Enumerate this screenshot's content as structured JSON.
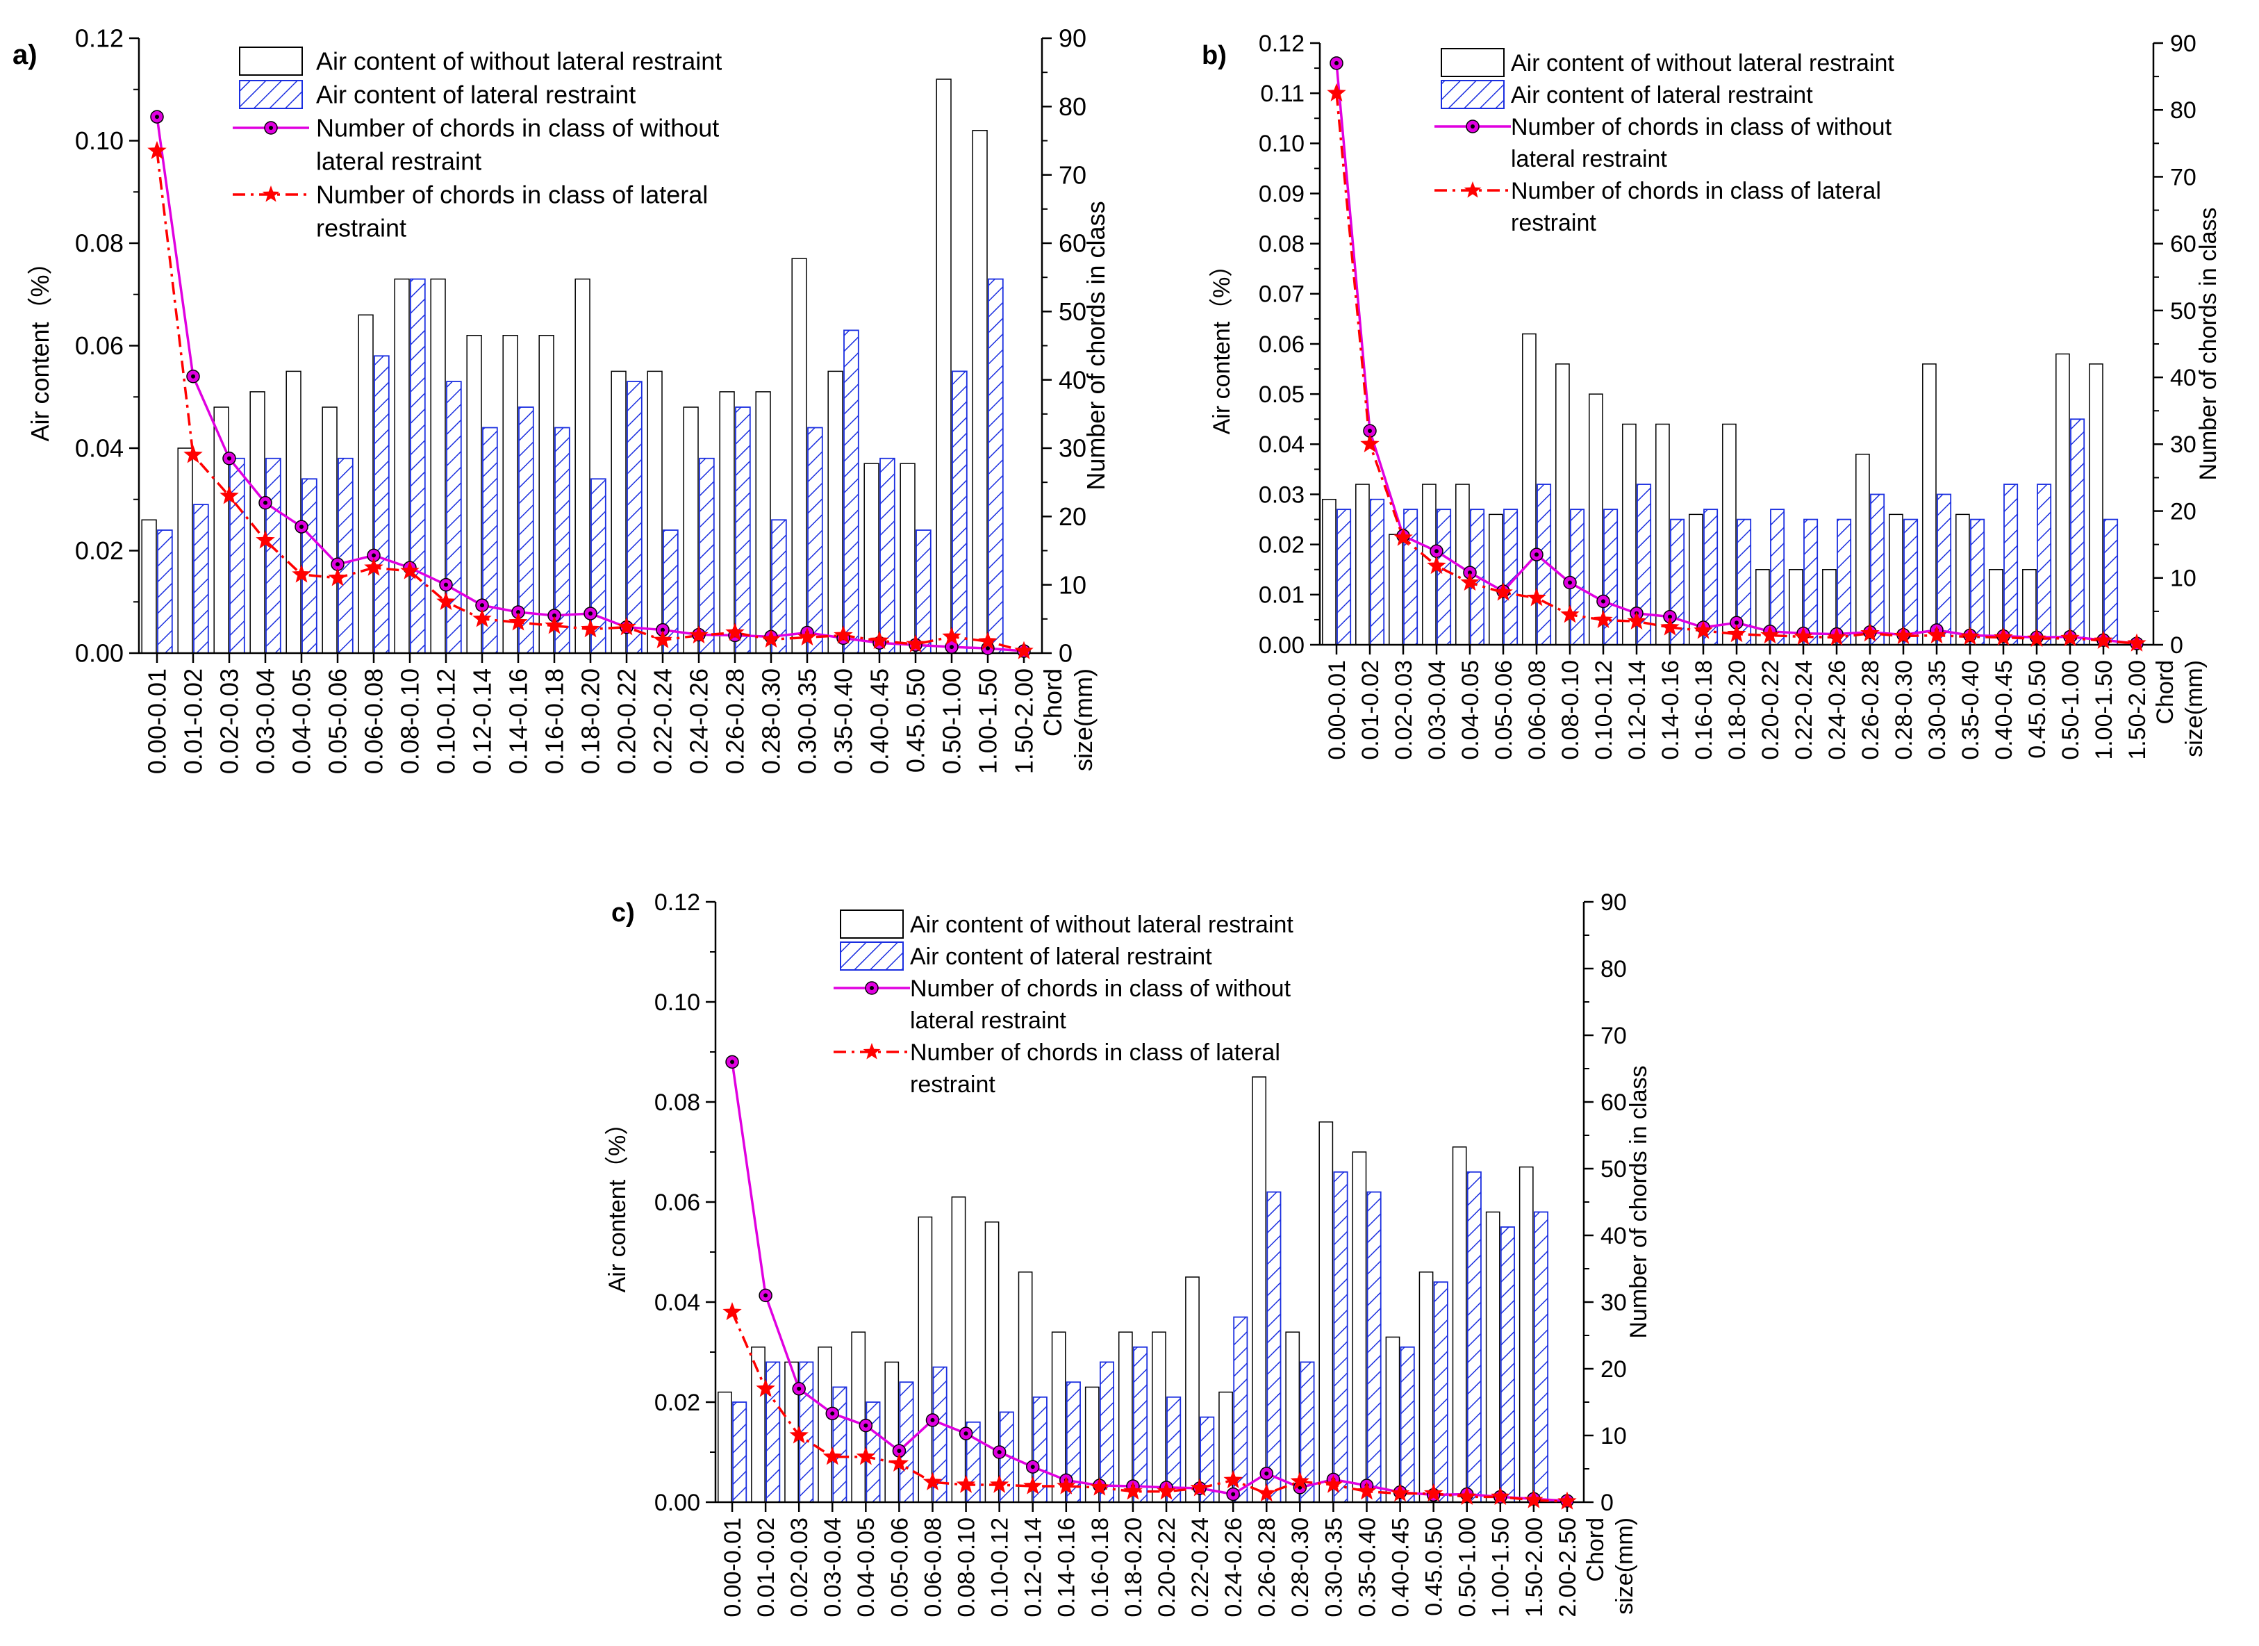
{
  "chart_data": [
    {
      "panel": "a)",
      "type": "bar",
      "ylabel": "Air content（%）",
      "y2label": "Number of chords in class",
      "xlabel": [
        "Chord",
        "size(mm)"
      ],
      "ylim": [
        0,
        0.12
      ],
      "yticks": [
        "0.00",
        "0.02",
        "0.04",
        "0.06",
        "0.08",
        "0.10",
        "0.12"
      ],
      "y2lim": [
        0,
        90
      ],
      "y2ticks": [
        "0",
        "10",
        "20",
        "30",
        "40",
        "50",
        "60",
        "70",
        "80",
        "90"
      ],
      "categories": [
        "0.00-0.01",
        "0.01-0.02",
        "0.02-0.03",
        "0.03-0.04",
        "0.04-0.05",
        "0.05-0.06",
        "0.06-0.08",
        "0.08-0.10",
        "0.10-0.12",
        "0.12-0.14",
        "0.14-0.16",
        "0.16-0.18",
        "0.18-0.20",
        "0.20-0.22",
        "0.22-0.24",
        "0.24-0.26",
        "0.26-0.28",
        "0.28-0.30",
        "0.30-0.35",
        "0.35-0.40",
        "0.40-0.45",
        "0.45.0.50",
        "0.50-1.00",
        "1.00-1.50",
        "1.50-2.00"
      ],
      "legend": [
        {
          "kind": "bar-open",
          "lines": [
            "Air content of without lateral restraint"
          ]
        },
        {
          "kind": "bar-hatch",
          "lines": [
            "Air content of  lateral restraint"
          ]
        },
        {
          "kind": "line-circle",
          "lines": [
            "Number of chords in class of  without",
            "lateral restraint"
          ]
        },
        {
          "kind": "line-star",
          "lines": [
            "Number of chords in class of  lateral",
            "restraint"
          ]
        }
      ],
      "series": [
        {
          "name": "Air content of without lateral restraint",
          "axis": "left",
          "values": [
            0.026,
            0.04,
            0.048,
            0.051,
            0.055,
            0.048,
            0.066,
            0.073,
            0.073,
            0.062,
            0.062,
            0.062,
            0.073,
            0.055,
            0.055,
            0.048,
            0.051,
            0.051,
            0.077,
            0.055,
            0.037,
            0.037,
            0.112,
            0.102,
            null
          ]
        },
        {
          "name": "Air content of  lateral restraint",
          "axis": "left",
          "values": [
            0.024,
            0.029,
            0.038,
            0.038,
            0.034,
            0.038,
            0.058,
            0.073,
            0.053,
            0.044,
            0.048,
            0.044,
            0.034,
            0.053,
            0.024,
            0.038,
            0.048,
            0.026,
            0.044,
            0.063,
            0.038,
            0.024,
            0.055,
            0.073,
            null
          ]
        },
        {
          "name": "Number of chords in class of  without lateral restraint",
          "axis": "right",
          "values": [
            78.5,
            40.5,
            28.5,
            22,
            18.5,
            13,
            14.3,
            12.5,
            10,
            7,
            6,
            5.5,
            5.8,
            3.8,
            3.4,
            2.7,
            2.6,
            2.4,
            3,
            2.2,
            1.5,
            1.2,
            0.9,
            0.7,
            0.3
          ]
        },
        {
          "name": "Number of chords in class of  lateral restraint",
          "axis": "right",
          "values": [
            73.5,
            29,
            23,
            16.5,
            11.5,
            11,
            12.5,
            12,
            7.5,
            5,
            4.5,
            4,
            3.5,
            3.8,
            1.9,
            2.6,
            3,
            2,
            2.3,
            2.6,
            1.8,
            1.3,
            2.4,
            1.7,
            0.3
          ]
        }
      ]
    },
    {
      "panel": "b)",
      "type": "bar",
      "ylabel": "Air content（%）",
      "y2label": "Number of chords in class",
      "xlabel": [
        "Chord",
        "size(mm)"
      ],
      "ylim": [
        0,
        0.12
      ],
      "yticks": [
        "0.00",
        "0.01",
        "0.02",
        "0.03",
        "0.04",
        "0.05",
        "0.06",
        "0.07",
        "0.08",
        "0.09",
        "0.10",
        "0.11",
        "0.12"
      ],
      "y2lim": [
        0,
        90
      ],
      "y2ticks": [
        "0",
        "10",
        "20",
        "30",
        "40",
        "50",
        "60",
        "70",
        "80",
        "90"
      ],
      "categories": [
        "0.00-0.01",
        "0.01-0.02",
        "0.02-0.03",
        "0.03-0.04",
        "0.04-0.05",
        "0.05-0.06",
        "0.06-0.08",
        "0.08-0.10",
        "0.10-0.12",
        "0.12-0.14",
        "0.14-0.16",
        "0.16-0.18",
        "0.18-0.20",
        "0.20-0.22",
        "0.22-0.24",
        "0.24-0.26",
        "0.26-0.28",
        "0.28-0.30",
        "0.30-0.35",
        "0.35-0.40",
        "0.40-0.45",
        "0.45.0.50",
        "0.50-1.00",
        "1.00-1.50",
        "1.50-2.00"
      ],
      "legend": [
        {
          "kind": "bar-open",
          "lines": [
            "Air content of  without lateral restraint"
          ]
        },
        {
          "kind": "bar-hatch",
          "lines": [
            "Air content of  lateral restraint"
          ]
        },
        {
          "kind": "line-circle",
          "lines": [
            "Number of chords in class of  without",
            "lateral restraint"
          ]
        },
        {
          "kind": "line-star",
          "lines": [
            "Number of chords in class of  lateral",
            "restraint"
          ]
        }
      ],
      "series": [
        {
          "name": "Air content of  without lateral restraint",
          "axis": "left",
          "values": [
            0.029,
            0.032,
            0.022,
            0.032,
            0.032,
            0.026,
            0.062,
            0.056,
            0.05,
            0.044,
            0.044,
            0.026,
            0.044,
            0.015,
            0.015,
            0.015,
            0.038,
            0.026,
            0.056,
            0.026,
            0.015,
            0.015,
            0.058,
            0.056,
            null
          ]
        },
        {
          "name": "Air content of  lateral restraint",
          "axis": "left",
          "values": [
            0.027,
            0.029,
            0.027,
            0.027,
            0.027,
            0.027,
            0.032,
            0.027,
            0.027,
            0.032,
            0.025,
            0.027,
            0.025,
            0.027,
            0.025,
            0.025,
            0.03,
            0.025,
            0.03,
            0.025,
            0.032,
            0.032,
            0.045,
            0.025,
            null
          ]
        },
        {
          "name": "Number of chords in class of  without lateral restraint",
          "axis": "right",
          "values": [
            87,
            32,
            16.3,
            14,
            10.8,
            8,
            13.5,
            9.3,
            6.5,
            4.7,
            4.2,
            2.6,
            3.3,
            2,
            1.7,
            1.6,
            1.9,
            1.5,
            2.2,
            1.4,
            1.3,
            1.1,
            1.2,
            0.7,
            0.2
          ]
        },
        {
          "name": "Number of chords in class of  lateral restraint",
          "axis": "right",
          "values": [
            82.5,
            30,
            16,
            11.8,
            9.3,
            7.8,
            7,
            4.5,
            3.7,
            3.5,
            2.6,
            2.1,
            1.6,
            1.4,
            1.2,
            1.1,
            1.7,
            1.3,
            1.4,
            1.2,
            1.1,
            0.9,
            1,
            0.6,
            0.2
          ]
        }
      ]
    },
    {
      "panel": "c)",
      "type": "bar",
      "ylabel": "Air content（%）",
      "y2label": "Number of chords in class",
      "xlabel": [
        "Chord",
        "size(mm)"
      ],
      "ylim": [
        0,
        0.12
      ],
      "yticks": [
        "0.00",
        "0.02",
        "0.04",
        "0.06",
        "0.08",
        "0.10",
        "0.12"
      ],
      "y2lim": [
        0,
        90
      ],
      "y2ticks": [
        "0",
        "10",
        "20",
        "30",
        "40",
        "50",
        "60",
        "70",
        "80",
        "90"
      ],
      "categories": [
        "0.00-0.01",
        "0.01-0.02",
        "0.02-0.03",
        "0.03-0.04",
        "0.04-0.05",
        "0.05-0.06",
        "0.06-0.08",
        "0.08-0.10",
        "0.10-0.12",
        "0.12-0.14",
        "0.14-0.16",
        "0.16-0.18",
        "0.18-0.20",
        "0.20-0.22",
        "0.22-0.24",
        "0.24-0.26",
        "0.26-0.28",
        "0.28-0.30",
        "0.30-0.35",
        "0.35-0.40",
        "0.40-0.45",
        "0.45.0.50",
        "0.50-1.00",
        "1.00-1.50",
        "1.50-2.00",
        "2.00-2.50"
      ],
      "legend": [
        {
          "kind": "bar-open",
          "lines": [
            "Air content of  without lateral restraint"
          ]
        },
        {
          "kind": "bar-hatch",
          "lines": [
            "Air content of  lateral restraint"
          ]
        },
        {
          "kind": "line-circle",
          "lines": [
            "Number of chords in class of  without",
            "lateral restraint"
          ]
        },
        {
          "kind": "line-star",
          "lines": [
            "Number of chords in class of  lateral",
            "restraint"
          ]
        }
      ],
      "series": [
        {
          "name": "Air content of  without lateral restraint",
          "axis": "left",
          "values": [
            0.022,
            0.031,
            0.028,
            0.031,
            0.034,
            0.028,
            0.057,
            0.061,
            0.056,
            0.046,
            0.034,
            0.023,
            0.034,
            0.034,
            0.045,
            0.022,
            0.085,
            0.034,
            0.076,
            0.07,
            0.033,
            0.046,
            0.071,
            0.058,
            0.067,
            null
          ]
        },
        {
          "name": "Air content of  lateral restraint",
          "axis": "left",
          "values": [
            0.02,
            0.028,
            0.028,
            0.023,
            0.02,
            0.024,
            0.027,
            0.016,
            0.018,
            0.021,
            0.024,
            0.028,
            0.031,
            0.021,
            0.017,
            0.037,
            0.062,
            0.028,
            0.066,
            0.062,
            0.031,
            0.044,
            0.066,
            0.055,
            0.058,
            null
          ]
        },
        {
          "name": "Number of chords in class of  without lateral restraint",
          "axis": "right",
          "values": [
            66,
            31,
            17,
            13.3,
            11.5,
            7.7,
            12.3,
            10.3,
            7.5,
            5.3,
            3.3,
            2.5,
            2.4,
            2.2,
            2.1,
            1.2,
            4.3,
            2.2,
            3.4,
            2.5,
            1.5,
            1.1,
            1.2,
            0.8,
            0.5,
            0.2
          ]
        },
        {
          "name": "Number of chords in class of  lateral restraint",
          "axis": "right",
          "values": [
            28.5,
            17,
            10,
            6.8,
            6.8,
            5.8,
            3,
            2.6,
            2.6,
            2.4,
            2.4,
            2.2,
            1.6,
            1.6,
            2.1,
            3.3,
            1.3,
            3.1,
            2.6,
            1.6,
            1.3,
            1.3,
            0.8,
            0.8,
            0.3,
            0.1
          ]
        }
      ]
    }
  ]
}
